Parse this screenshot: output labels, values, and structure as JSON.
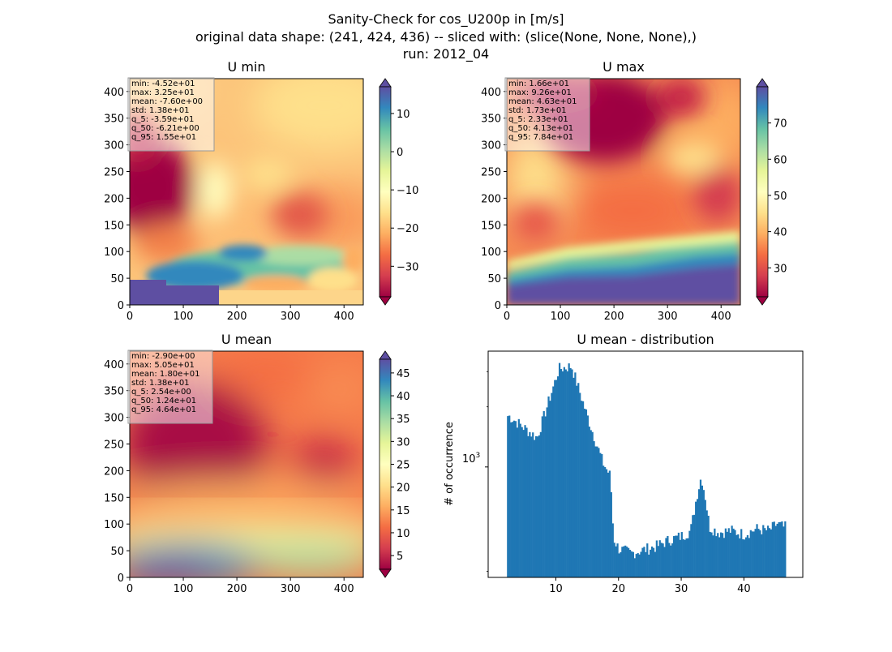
{
  "figure": {
    "suptitle_lines": [
      "Sanity-Check for cos_U200p in [m/s]",
      "original data shape: (241, 424, 436) -- sliced with: (slice(None, None, None),)",
      "run: 2012_04"
    ]
  },
  "chart_data": [
    {
      "id": "umin",
      "type": "heatmap",
      "title": "U min",
      "xlim": [
        0,
        436
      ],
      "ylim": [
        0,
        424
      ],
      "xticks": [
        0,
        100,
        200,
        300,
        400
      ],
      "yticks": [
        0,
        50,
        100,
        150,
        200,
        250,
        300,
        350,
        400
      ],
      "colormap": "Spectral",
      "colorbar": {
        "range": [
          -38,
          17
        ],
        "ticks": [
          -30,
          -20,
          -10,
          0,
          10
        ],
        "tick_labels": [
          "−30",
          "−20",
          "−10",
          "0",
          "10"
        ],
        "extend": "both"
      },
      "stats_lines": [
        "min: -4.52e+01",
        "max: 3.25e+01",
        "mean: -7.60e+00",
        "std: 1.38e+01",
        "q_5: -3.59e+01",
        "q_50: -6.21e+00",
        "q_95: 1.55e+01"
      ]
    },
    {
      "id": "umax",
      "type": "heatmap",
      "title": "U max",
      "xlim": [
        0,
        436
      ],
      "ylim": [
        0,
        424
      ],
      "xticks": [
        0,
        100,
        200,
        300,
        400
      ],
      "yticks": [
        0,
        50,
        100,
        150,
        200,
        250,
        300,
        350,
        400
      ],
      "colormap": "Spectral",
      "colorbar": {
        "range": [
          22,
          80
        ],
        "ticks": [
          30,
          40,
          50,
          60,
          70
        ],
        "tick_labels": [
          "30",
          "40",
          "50",
          "60",
          "70"
        ],
        "extend": "both"
      },
      "stats_lines": [
        "min: 1.66e+01",
        "max: 9.26e+01",
        "mean: 4.63e+01",
        "std: 1.73e+01",
        "q_5: 2.33e+01",
        "q_50: 4.13e+01",
        "q_95: 7.84e+01"
      ]
    },
    {
      "id": "umean",
      "type": "heatmap",
      "title": "U mean",
      "xlim": [
        0,
        436
      ],
      "ylim": [
        0,
        424
      ],
      "xticks": [
        0,
        100,
        200,
        300,
        400
      ],
      "yticks": [
        0,
        50,
        100,
        150,
        200,
        250,
        300,
        350,
        400
      ],
      "colormap": "Spectral",
      "colorbar": {
        "range": [
          2,
          48
        ],
        "ticks": [
          5,
          10,
          15,
          20,
          25,
          30,
          35,
          40,
          45
        ],
        "tick_labels": [
          "5",
          "10",
          "15",
          "20",
          "25",
          "30",
          "35",
          "40",
          "45"
        ],
        "extend": "both"
      },
      "stats_lines": [
        "min: -2.90e+00",
        "max: 5.05e+01",
        "mean: 1.80e+01",
        "std: 1.38e+01",
        "q_5: 2.54e+00",
        "q_50: 1.24e+01",
        "q_95: 4.64e+01"
      ]
    },
    {
      "id": "hist",
      "type": "bar",
      "title": "U mean - distribution",
      "xlabel": "",
      "ylabel": "# of occurrence",
      "yscale": "log",
      "xlim": [
        -0.8,
        49.4
      ],
      "ylim": [
        280,
        3800
      ],
      "xticks": [
        10,
        20,
        30,
        40
      ],
      "ytick_labels_major": [
        {
          "value": 1000,
          "base": "10",
          "exp": "3"
        }
      ],
      "yticks_minor": [
        300,
        2000,
        3000
      ],
      "color": "#1f77b4",
      "x": [
        2.5,
        7.0,
        10.5,
        12.5,
        15.0,
        17.5,
        18.7,
        19.2,
        20.0,
        22.0,
        24.0,
        26.0,
        28.0,
        30.0,
        31.5,
        32.5,
        33.2,
        33.8,
        34.5,
        36.0,
        38.0,
        40.0,
        42.0,
        44.0,
        45.3,
        46.3
      ],
      "values": [
        1800,
        1400,
        3100,
        3200,
        1800,
        1050,
        900,
        440,
        390,
        370,
        385,
        400,
        430,
        450,
        480,
        720,
        900,
        720,
        500,
        470,
        480,
        460,
        490,
        480,
        520,
        500
      ]
    }
  ]
}
